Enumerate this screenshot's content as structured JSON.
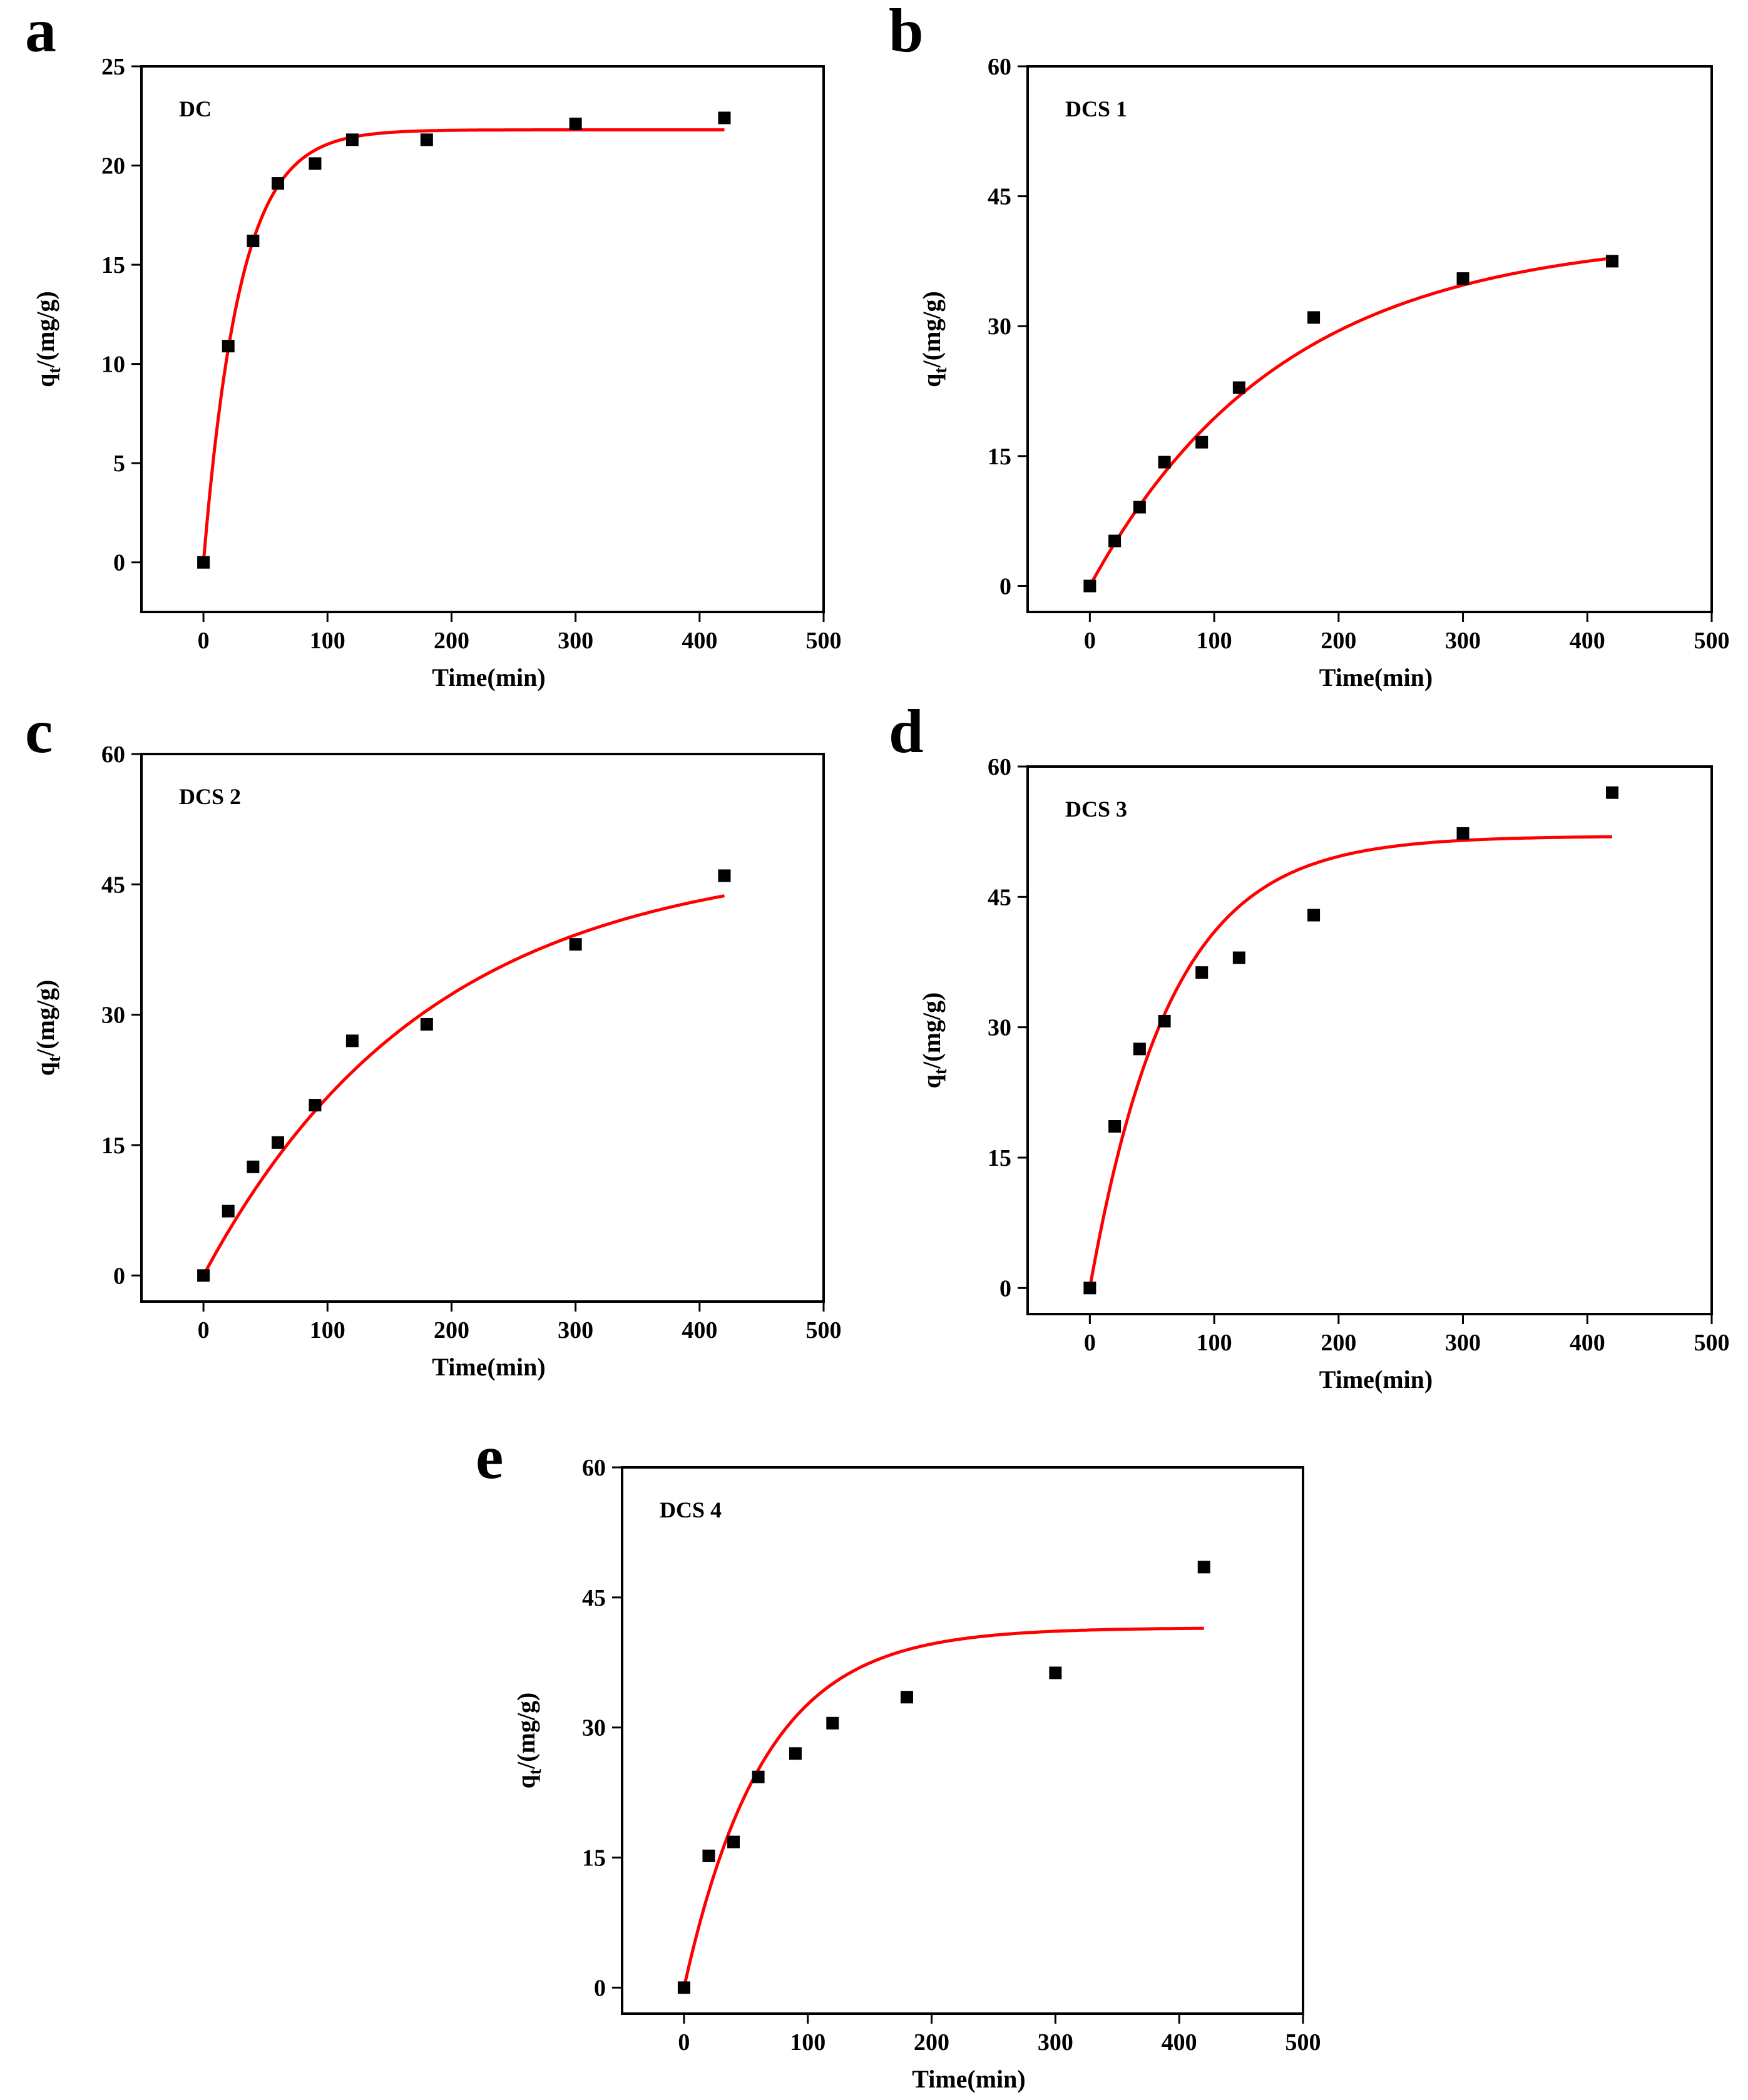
{
  "chart_data": [
    {
      "panel": "a",
      "type": "scatter",
      "title": "DC",
      "xlabel": "Time(min)",
      "ylabel_main": "q",
      "ylabel_sub": "t",
      "ylabel_unit": "/(mg/g)",
      "xlim": [
        -50,
        500
      ],
      "ylim": [
        -2.5,
        25
      ],
      "xticks": [
        0,
        100,
        200,
        300,
        400,
        500
      ],
      "yticks": [
        0,
        5,
        10,
        15,
        20,
        25
      ],
      "x": [
        0,
        20,
        40,
        60,
        90,
        120,
        180,
        300,
        420
      ],
      "y": [
        0,
        10.9,
        16.2,
        19.1,
        20.1,
        21.3,
        21.3,
        22.1,
        22.4
      ],
      "fit": {
        "color": "#ff0000",
        "qe": 21.8,
        "k": 0.034,
        "xmax": 420
      },
      "marker_color": "#000000"
    },
    {
      "panel": "b",
      "type": "scatter",
      "title": "DCS 1",
      "xlabel": "Time(min)",
      "ylabel_main": "q",
      "ylabel_sub": "t",
      "ylabel_unit": "/(mg/g)",
      "xlim": [
        -50,
        500
      ],
      "ylim": [
        -3,
        60
      ],
      "xticks": [
        0,
        100,
        200,
        300,
        400,
        500
      ],
      "yticks": [
        0,
        15,
        30,
        45,
        60
      ],
      "x": [
        0,
        20,
        40,
        60,
        90,
        120,
        180,
        300,
        420
      ],
      "y": [
        0,
        5.2,
        9.1,
        14.3,
        16.6,
        22.9,
        31.0,
        35.5,
        37.5
      ],
      "fit": {
        "color": "#ff0000",
        "qe": 40.5,
        "k": 0.0065,
        "xmax": 420
      },
      "marker_color": "#000000"
    },
    {
      "panel": "c",
      "type": "scatter",
      "title": "DCS 2",
      "xlabel": "Time(min)",
      "ylabel_main": "q",
      "ylabel_sub": "t",
      "ylabel_unit": "/(mg/g)",
      "xlim": [
        -50,
        500
      ],
      "ylim": [
        -3,
        60
      ],
      "xticks": [
        0,
        100,
        200,
        300,
        400,
        500
      ],
      "yticks": [
        0,
        15,
        30,
        45,
        60
      ],
      "x": [
        0,
        20,
        40,
        60,
        90,
        120,
        180,
        300,
        420
      ],
      "y": [
        0,
        7.4,
        12.5,
        15.3,
        19.6,
        27.0,
        28.9,
        38.1,
        46.0
      ],
      "fit": {
        "color": "#ff0000",
        "qe": 48.5,
        "k": 0.0055,
        "xmax": 420
      },
      "marker_color": "#000000"
    },
    {
      "panel": "d",
      "type": "scatter",
      "title": "DCS 3",
      "xlabel": "Time(min)",
      "ylabel_main": "q",
      "ylabel_sub": "t",
      "ylabel_unit": "/(mg/g)",
      "xlim": [
        -50,
        500
      ],
      "ylim": [
        -3,
        60
      ],
      "xticks": [
        0,
        100,
        200,
        300,
        400,
        500
      ],
      "yticks": [
        0,
        15,
        30,
        45,
        60
      ],
      "x": [
        0,
        20,
        40,
        60,
        90,
        120,
        180,
        300,
        420
      ],
      "y": [
        0,
        18.6,
        27.5,
        30.7,
        36.3,
        38.0,
        42.9,
        52.3,
        57.0
      ],
      "fit": {
        "color": "#ff0000",
        "qe": 52.0,
        "k": 0.0155,
        "xmax": 420
      },
      "marker_color": "#000000"
    },
    {
      "panel": "e",
      "type": "scatter",
      "title": "DCS 4",
      "xlabel": "Time(min)",
      "ylabel_main": "q",
      "ylabel_sub": "t",
      "ylabel_unit": "/(mg/g)",
      "xlim": [
        -50,
        500
      ],
      "ylim": [
        -3,
        60
      ],
      "xticks": [
        0,
        100,
        200,
        300,
        400,
        500
      ],
      "yticks": [
        0,
        15,
        30,
        45,
        60
      ],
      "x": [
        0,
        20,
        40,
        60,
        90,
        120,
        180,
        300,
        420
      ],
      "y": [
        0,
        15.2,
        16.8,
        24.3,
        27.0,
        30.5,
        33.5,
        36.3,
        48.5
      ],
      "fit": {
        "color": "#ff0000",
        "qe": 41.5,
        "k": 0.0155,
        "xmax": 420
      },
      "marker_color": "#000000"
    }
  ]
}
